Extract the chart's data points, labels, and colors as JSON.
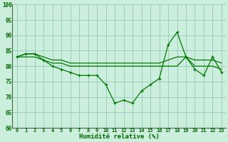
{
  "xlabel": "Humidité relative (%)",
  "background_color": "#cceedd",
  "grid_color": "#99ccbb",
  "line_color": "#007700",
  "xlim": [
    -0.5,
    23.5
  ],
  "ylim": [
    60,
    100
  ],
  "yticks": [
    60,
    65,
    70,
    75,
    80,
    85,
    90,
    95,
    100
  ],
  "xticks": [
    0,
    1,
    2,
    3,
    4,
    5,
    6,
    7,
    8,
    9,
    10,
    11,
    12,
    13,
    14,
    15,
    16,
    17,
    18,
    19,
    20,
    21,
    22,
    23
  ],
  "line1": [
    83,
    84,
    84,
    82,
    80,
    79,
    78,
    77,
    77,
    77,
    74,
    68,
    69,
    68,
    72,
    74,
    76,
    87,
    91,
    83,
    79,
    77,
    83,
    78
  ],
  "line2": [
    83,
    84,
    84,
    83,
    82,
    82,
    81,
    81,
    81,
    81,
    81,
    81,
    81,
    81,
    81,
    81,
    81,
    82,
    83,
    83,
    82,
    82,
    82,
    81
  ],
  "line3": [
    83,
    83,
    83,
    82,
    81,
    81,
    80,
    80,
    80,
    80,
    80,
    80,
    80,
    80,
    80,
    80,
    80,
    80,
    80,
    83,
    80,
    80,
    80,
    79
  ]
}
